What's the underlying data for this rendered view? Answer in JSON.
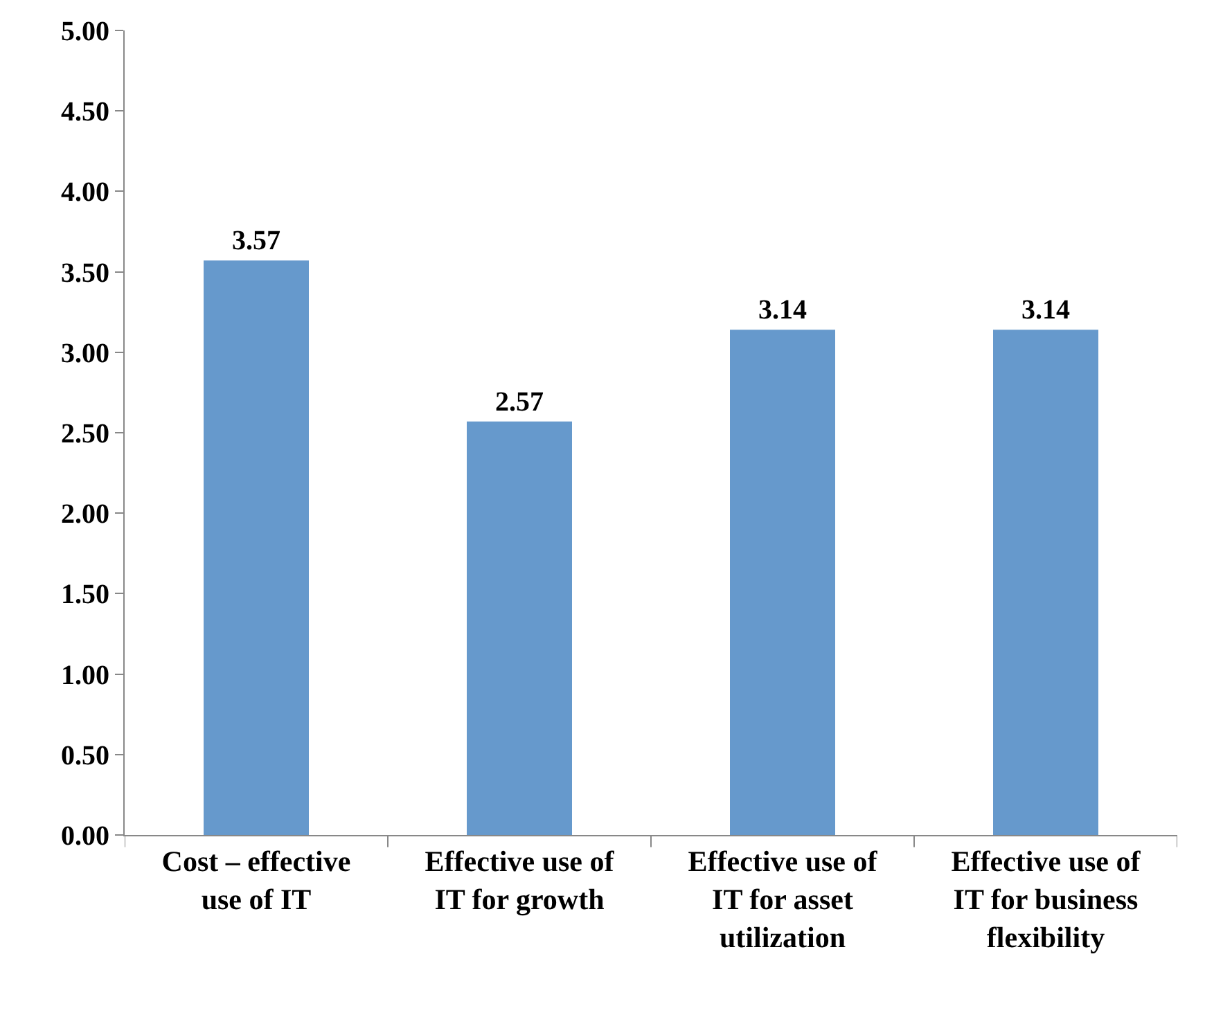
{
  "chart_data": {
    "type": "bar",
    "categories": [
      "Cost – effective use of IT",
      "Effective use of IT for growth",
      "Effective use of IT for asset utilization",
      "Effective use of IT for business flexibility"
    ],
    "values": [
      3.57,
      2.57,
      3.14,
      3.14
    ],
    "color": "#6699cc",
    "ylim": [
      0,
      5
    ],
    "yticks": [
      {
        "value": 0,
        "label": "0.00"
      },
      {
        "value": 0.5,
        "label": "0.50"
      },
      {
        "value": 1,
        "label": "1.00"
      },
      {
        "value": 1.5,
        "label": "1.50"
      },
      {
        "value": 2,
        "label": "2.00"
      },
      {
        "value": 2.5,
        "label": "2.50"
      },
      {
        "value": 3,
        "label": "3.00"
      },
      {
        "value": 3.5,
        "label": "3.50"
      },
      {
        "value": 4,
        "label": "4.00"
      },
      {
        "value": 4.5,
        "label": "4.50"
      },
      {
        "value": 5,
        "label": "5.00"
      }
    ],
    "data_labels": true,
    "legend": false
  }
}
